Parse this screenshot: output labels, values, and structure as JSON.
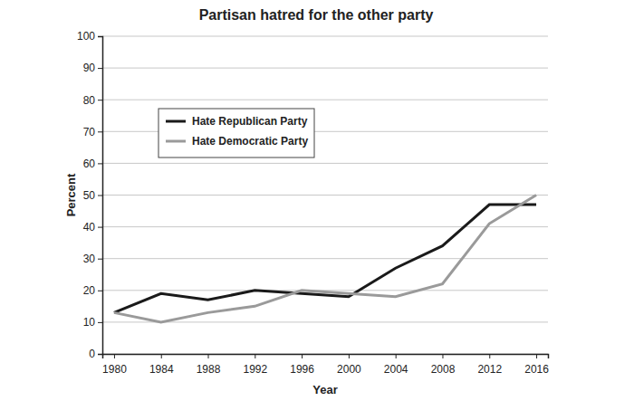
{
  "chart_data": {
    "type": "line",
    "title": "Partisan hatred for the other party",
    "x_label": "Year",
    "y_label": "Percent",
    "x": [
      1980,
      1984,
      1988,
      1992,
      1996,
      2000,
      2004,
      2008,
      2012,
      2016
    ],
    "series": [
      {
        "name": "Hate Republican Party",
        "color": "#1a1a1a",
        "values": [
          13,
          19,
          17,
          20,
          19,
          18,
          27,
          34,
          47,
          47
        ]
      },
      {
        "name": "Hate Democratic Party",
        "color": "#9a9a9a",
        "values": [
          13,
          10,
          13,
          15,
          20,
          19,
          18,
          22,
          41,
          50
        ]
      }
    ],
    "xlim": [
      1979,
      2017
    ],
    "xticks": [
      1980,
      1984,
      1988,
      1992,
      1996,
      2000,
      2004,
      2008,
      2012,
      2016
    ],
    "ylim": [
      0,
      100
    ],
    "yticks": [
      0,
      10,
      20,
      30,
      40,
      50,
      60,
      70,
      80,
      90,
      100
    ],
    "grid": true,
    "legend": "upper left"
  }
}
